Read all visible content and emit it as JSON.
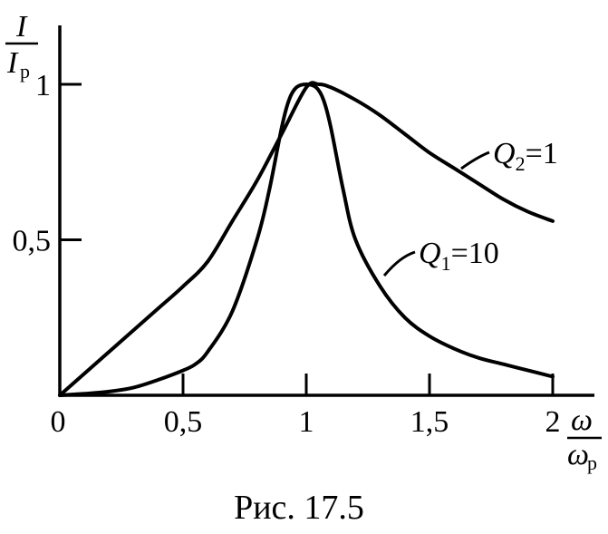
{
  "chart_data": {
    "type": "line",
    "caption": "Рис. 17.5",
    "ylabel": {
      "main": "I",
      "denom": "I",
      "denom_sub": "р"
    },
    "xlabel": {
      "main": "ω",
      "denom": "ω",
      "denom_sub": "р"
    },
    "xlim": [
      0,
      2
    ],
    "ylim": [
      0,
      1
    ],
    "x_ticks": [
      {
        "value": 0,
        "label": "0"
      },
      {
        "value": 0.5,
        "label": "0,5"
      },
      {
        "value": 1,
        "label": "1"
      },
      {
        "value": 1.5,
        "label": "1,5"
      },
      {
        "value": 2,
        "label": "2"
      }
    ],
    "y_ticks": [
      {
        "value": 0.5,
        "label": "0,5"
      },
      {
        "value": 1,
        "label": "1"
      }
    ],
    "series": [
      {
        "name": "Q₂=1",
        "label_main": "Q",
        "label_sub": "2",
        "label_rest": "=1",
        "points": [
          [
            0,
            0
          ],
          [
            0.1,
            0.07
          ],
          [
            0.2,
            0.14
          ],
          [
            0.3,
            0.21
          ],
          [
            0.4,
            0.28
          ],
          [
            0.5,
            0.35
          ],
          [
            0.6,
            0.43
          ],
          [
            0.7,
            0.56
          ],
          [
            0.8,
            0.69
          ],
          [
            0.9,
            0.84
          ],
          [
            1.0,
            0.99
          ],
          [
            1.05,
            1.0
          ],
          [
            1.1,
            0.99
          ],
          [
            1.2,
            0.95
          ],
          [
            1.3,
            0.9
          ],
          [
            1.4,
            0.84
          ],
          [
            1.5,
            0.78
          ],
          [
            1.6,
            0.73
          ],
          [
            1.7,
            0.68
          ],
          [
            1.8,
            0.63
          ],
          [
            1.9,
            0.59
          ],
          [
            2.0,
            0.56
          ]
        ]
      },
      {
        "name": "Q₁=10",
        "label_main": "Q",
        "label_sub": "1",
        "label_rest": "=10",
        "points": [
          [
            0,
            0
          ],
          [
            0.1,
            0.005
          ],
          [
            0.2,
            0.012
          ],
          [
            0.3,
            0.025
          ],
          [
            0.4,
            0.05
          ],
          [
            0.5,
            0.08
          ],
          [
            0.55,
            0.1
          ],
          [
            0.6,
            0.14
          ],
          [
            0.7,
            0.27
          ],
          [
            0.8,
            0.5
          ],
          [
            0.85,
            0.66
          ],
          [
            0.9,
            0.86
          ],
          [
            0.93,
            0.95
          ],
          [
            0.96,
            0.99
          ],
          [
            1.0,
            1.0
          ],
          [
            1.04,
            0.99
          ],
          [
            1.07,
            0.95
          ],
          [
            1.1,
            0.86
          ],
          [
            1.15,
            0.66
          ],
          [
            1.2,
            0.5
          ],
          [
            1.3,
            0.35
          ],
          [
            1.4,
            0.25
          ],
          [
            1.5,
            0.19
          ],
          [
            1.6,
            0.15
          ],
          [
            1.7,
            0.12
          ],
          [
            1.8,
            0.1
          ],
          [
            1.9,
            0.08
          ],
          [
            2.0,
            0.06
          ]
        ]
      }
    ]
  }
}
